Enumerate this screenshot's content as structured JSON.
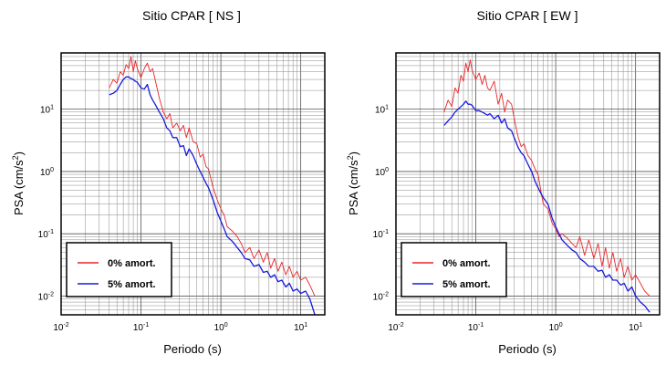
{
  "chart_data": [
    {
      "type": "line",
      "title": "Sitio CPAR [ NS ]",
      "xlabel": "Periodo (s)",
      "ylabel": "PSA (cm/s²)",
      "xscale": "log",
      "yscale": "log",
      "xlim": [
        0.01,
        20
      ],
      "ylim": [
        0.005,
        80
      ],
      "grid": true,
      "legend_position": "bottom-left",
      "xticks": [
        {
          "base": "10",
          "exp": "-2"
        },
        {
          "base": "10",
          "exp": "-1"
        },
        {
          "base": "10",
          "exp": "0"
        },
        {
          "base": "10",
          "exp": "1"
        }
      ],
      "yticks": [
        {
          "base": "10",
          "exp": "-2"
        },
        {
          "base": "10",
          "exp": "-1"
        },
        {
          "base": "10",
          "exp": "0"
        },
        {
          "base": "10",
          "exp": "1"
        }
      ],
      "series": [
        {
          "name": "0% amort.",
          "color": "#e8262b",
          "x": [
            0.04,
            0.045,
            0.05,
            0.055,
            0.06,
            0.065,
            0.07,
            0.075,
            0.08,
            0.085,
            0.09,
            0.1,
            0.11,
            0.12,
            0.13,
            0.14,
            0.15,
            0.17,
            0.19,
            0.21,
            0.23,
            0.25,
            0.28,
            0.31,
            0.34,
            0.37,
            0.4,
            0.45,
            0.5,
            0.55,
            0.6,
            0.65,
            0.7,
            0.8,
            0.9,
            1.0,
            1.1,
            1.2,
            1.4,
            1.6,
            1.8,
            2.0,
            2.3,
            2.6,
            3.0,
            3.4,
            3.8,
            4.2,
            4.7,
            5.2,
            5.8,
            6.5,
            7.2,
            8.0,
            9.0,
            10.0,
            11.5,
            13.0,
            15.0
          ],
          "y": [
            22,
            30,
            26,
            40,
            35,
            52,
            45,
            70,
            40,
            60,
            45,
            32,
            45,
            55,
            40,
            45,
            30,
            15,
            9,
            7,
            8.5,
            5,
            6,
            4.5,
            5.5,
            3.5,
            5,
            3,
            2.8,
            1.7,
            1.9,
            1.2,
            1.1,
            0.55,
            0.35,
            0.25,
            0.2,
            0.13,
            0.11,
            0.09,
            0.07,
            0.05,
            0.06,
            0.04,
            0.055,
            0.035,
            0.05,
            0.028,
            0.04,
            0.025,
            0.035,
            0.022,
            0.03,
            0.02,
            0.025,
            0.018,
            0.02,
            0.015,
            0.01
          ]
        },
        {
          "name": "5% amort.",
          "color": "#1a1adc",
          "x": [
            0.04,
            0.045,
            0.05,
            0.055,
            0.06,
            0.065,
            0.07,
            0.075,
            0.08,
            0.085,
            0.09,
            0.1,
            0.11,
            0.12,
            0.13,
            0.14,
            0.15,
            0.17,
            0.19,
            0.21,
            0.23,
            0.25,
            0.28,
            0.31,
            0.34,
            0.37,
            0.4,
            0.45,
            0.5,
            0.55,
            0.6,
            0.65,
            0.7,
            0.8,
            0.9,
            1.0,
            1.1,
            1.2,
            1.4,
            1.6,
            1.8,
            2.0,
            2.3,
            2.6,
            3.0,
            3.4,
            3.8,
            4.2,
            4.7,
            5.2,
            5.8,
            6.5,
            7.2,
            8.0,
            9.0,
            10.0,
            11.5,
            13.0,
            15.0
          ],
          "y": [
            17,
            18,
            20,
            25,
            30,
            33,
            33,
            31,
            30,
            28,
            27,
            22,
            21,
            25,
            17,
            14,
            12,
            9,
            7,
            5,
            4.5,
            3.5,
            3.5,
            2.5,
            2.6,
            1.8,
            2.3,
            1.8,
            1.3,
            1.0,
            0.8,
            0.65,
            0.55,
            0.35,
            0.22,
            0.16,
            0.12,
            0.09,
            0.075,
            0.06,
            0.05,
            0.04,
            0.038,
            0.03,
            0.032,
            0.024,
            0.025,
            0.02,
            0.022,
            0.017,
            0.018,
            0.014,
            0.016,
            0.012,
            0.013,
            0.011,
            0.012,
            0.009,
            0.005
          ]
        }
      ]
    },
    {
      "type": "line",
      "title": "Sitio CPAR [ EW ]",
      "xlabel": "Periodo (s)",
      "ylabel": "PSA (cm/s²)",
      "xscale": "log",
      "yscale": "log",
      "xlim": [
        0.01,
        20
      ],
      "ylim": [
        0.005,
        80
      ],
      "grid": true,
      "legend_position": "bottom-left",
      "xticks": [
        {
          "base": "10",
          "exp": "-2"
        },
        {
          "base": "10",
          "exp": "-1"
        },
        {
          "base": "10",
          "exp": "0"
        },
        {
          "base": "10",
          "exp": "1"
        }
      ],
      "yticks": [
        {
          "base": "10",
          "exp": "-2"
        },
        {
          "base": "10",
          "exp": "-1"
        },
        {
          "base": "10",
          "exp": "0"
        },
        {
          "base": "10",
          "exp": "1"
        }
      ],
      "series": [
        {
          "name": "0% amort.",
          "color": "#e8262b",
          "x": [
            0.04,
            0.045,
            0.05,
            0.055,
            0.06,
            0.065,
            0.07,
            0.075,
            0.08,
            0.085,
            0.09,
            0.1,
            0.11,
            0.12,
            0.13,
            0.14,
            0.15,
            0.17,
            0.19,
            0.21,
            0.23,
            0.25,
            0.28,
            0.31,
            0.34,
            0.37,
            0.4,
            0.45,
            0.5,
            0.55,
            0.6,
            0.65,
            0.7,
            0.8,
            0.9,
            1.0,
            1.1,
            1.2,
            1.4,
            1.6,
            1.8,
            2.0,
            2.3,
            2.6,
            3.0,
            3.4,
            3.8,
            4.2,
            4.7,
            5.2,
            5.8,
            6.5,
            7.2,
            8.0,
            9.0,
            10.0,
            11.5,
            13.0,
            15.0
          ],
          "y": [
            9,
            14,
            11,
            22,
            18,
            35,
            28,
            55,
            40,
            62,
            42,
            30,
            38,
            25,
            35,
            22,
            20,
            28,
            12,
            18,
            9,
            14,
            12,
            6,
            3.5,
            2.5,
            2.8,
            1.8,
            1.5,
            1.1,
            0.9,
            0.5,
            0.3,
            0.25,
            0.15,
            0.12,
            0.09,
            0.1,
            0.085,
            0.07,
            0.06,
            0.09,
            0.045,
            0.08,
            0.04,
            0.07,
            0.03,
            0.06,
            0.028,
            0.05,
            0.025,
            0.04,
            0.02,
            0.03,
            0.018,
            0.022,
            0.016,
            0.012,
            0.01
          ]
        },
        {
          "name": "5% amort.",
          "color": "#1a1adc",
          "x": [
            0.04,
            0.045,
            0.05,
            0.055,
            0.06,
            0.065,
            0.07,
            0.075,
            0.08,
            0.085,
            0.09,
            0.1,
            0.11,
            0.12,
            0.13,
            0.14,
            0.15,
            0.17,
            0.19,
            0.21,
            0.23,
            0.25,
            0.28,
            0.31,
            0.34,
            0.37,
            0.4,
            0.45,
            0.5,
            0.55,
            0.6,
            0.65,
            0.7,
            0.8,
            0.9,
            1.0,
            1.1,
            1.2,
            1.4,
            1.6,
            1.8,
            2.0,
            2.3,
            2.6,
            3.0,
            3.4,
            3.8,
            4.2,
            4.7,
            5.2,
            5.8,
            6.5,
            7.2,
            8.0,
            9.0,
            10.0,
            11.5,
            13.0,
            15.0
          ],
          "y": [
            5.5,
            6.5,
            7.5,
            9,
            10,
            11,
            12,
            13.5,
            12,
            12,
            11.5,
            9.5,
            9.5,
            9,
            8.5,
            8,
            8.5,
            7,
            8,
            6,
            7,
            5,
            4.5,
            3.2,
            2.4,
            2.0,
            1.8,
            1.3,
            1.0,
            0.7,
            0.55,
            0.45,
            0.38,
            0.3,
            0.18,
            0.13,
            0.1,
            0.08,
            0.065,
            0.055,
            0.05,
            0.04,
            0.035,
            0.03,
            0.03,
            0.025,
            0.026,
            0.02,
            0.022,
            0.018,
            0.018,
            0.015,
            0.016,
            0.012,
            0.014,
            0.01,
            0.008,
            0.007,
            0.0055
          ]
        }
      ]
    }
  ]
}
